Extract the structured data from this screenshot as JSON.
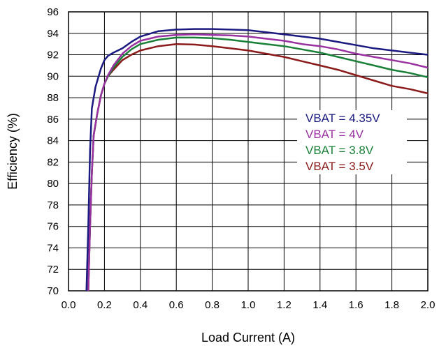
{
  "chart_data": {
    "type": "line",
    "title": "",
    "xlabel": "Load Current (A)",
    "ylabel": "Efficiency (%)",
    "xlim": [
      0,
      2
    ],
    "ylim": [
      70,
      96
    ],
    "xticks": [
      "0.0",
      "0.2",
      "0.4",
      "0.6",
      "0.8",
      "1.0",
      "1.2",
      "1.4",
      "1.6",
      "1.8",
      "2.0"
    ],
    "yticks": [
      "70",
      "72",
      "74",
      "76",
      "78",
      "80",
      "82",
      "84",
      "86",
      "88",
      "90",
      "92",
      "94",
      "96"
    ],
    "grid": true,
    "legend_position": "right-middle",
    "series": [
      {
        "name": "VBAT = 4.35V",
        "color": "#1a1a80",
        "x": [
          0.1,
          0.11,
          0.12,
          0.13,
          0.15,
          0.18,
          0.2,
          0.22,
          0.25,
          0.3,
          0.35,
          0.4,
          0.5,
          0.6,
          0.7,
          0.8,
          0.9,
          1.0,
          1.1,
          1.2,
          1.3,
          1.4,
          1.5,
          1.6,
          1.7,
          1.8,
          1.9,
          2.0
        ],
        "y": [
          70,
          76,
          83,
          87,
          89,
          90.7,
          91.5,
          91.9,
          92.2,
          92.6,
          93.2,
          93.7,
          94.2,
          94.35,
          94.4,
          94.4,
          94.35,
          94.3,
          94.1,
          93.9,
          93.7,
          93.5,
          93.2,
          92.9,
          92.6,
          92.4,
          92.2,
          92.0
        ]
      },
      {
        "name": "VBAT = 4V",
        "color": "#9932a0",
        "x": [
          0.11,
          0.12,
          0.13,
          0.14,
          0.16,
          0.18,
          0.2,
          0.22,
          0.25,
          0.3,
          0.35,
          0.4,
          0.5,
          0.6,
          0.7,
          0.8,
          0.9,
          1.0,
          1.1,
          1.2,
          1.3,
          1.4,
          1.5,
          1.6,
          1.7,
          1.8,
          1.9,
          2.0
        ],
        "y": [
          70,
          76,
          81,
          84.5,
          86.5,
          88.2,
          89.3,
          90.1,
          91.0,
          92.1,
          92.8,
          93.3,
          93.7,
          93.85,
          93.9,
          93.85,
          93.8,
          93.7,
          93.5,
          93.3,
          93.0,
          92.8,
          92.5,
          92.1,
          91.8,
          91.5,
          91.2,
          90.8
        ]
      },
      {
        "name": "VBAT = 3.8V",
        "color": "#1a8038",
        "x": [
          0.11,
          0.12,
          0.13,
          0.14,
          0.16,
          0.18,
          0.2,
          0.22,
          0.25,
          0.3,
          0.35,
          0.4,
          0.5,
          0.6,
          0.7,
          0.8,
          0.9,
          1.0,
          1.1,
          1.2,
          1.3,
          1.4,
          1.5,
          1.6,
          1.7,
          1.8,
          1.9,
          2.0
        ],
        "y": [
          70,
          76,
          81,
          84.5,
          86.5,
          88.2,
          89.3,
          90.0,
          90.8,
          91.8,
          92.5,
          93.0,
          93.4,
          93.6,
          93.6,
          93.55,
          93.4,
          93.2,
          93.0,
          92.8,
          92.5,
          92.2,
          91.8,
          91.4,
          91.0,
          90.6,
          90.3,
          89.9
        ]
      },
      {
        "name": "VBAT = 3.5V",
        "color": "#8b1a1a",
        "x": [
          0.11,
          0.12,
          0.13,
          0.14,
          0.16,
          0.18,
          0.2,
          0.22,
          0.25,
          0.3,
          0.35,
          0.4,
          0.5,
          0.6,
          0.7,
          0.8,
          0.9,
          1.0,
          1.1,
          1.2,
          1.3,
          1.4,
          1.5,
          1.6,
          1.7,
          1.8,
          1.9,
          2.0
        ],
        "y": [
          70,
          76,
          81,
          84.5,
          86.5,
          88.2,
          89.3,
          90.0,
          90.6,
          91.5,
          92.0,
          92.4,
          92.8,
          93.0,
          92.95,
          92.8,
          92.6,
          92.4,
          92.1,
          91.8,
          91.4,
          91.0,
          90.6,
          90.1,
          89.6,
          89.1,
          88.8,
          88.4
        ]
      }
    ]
  }
}
